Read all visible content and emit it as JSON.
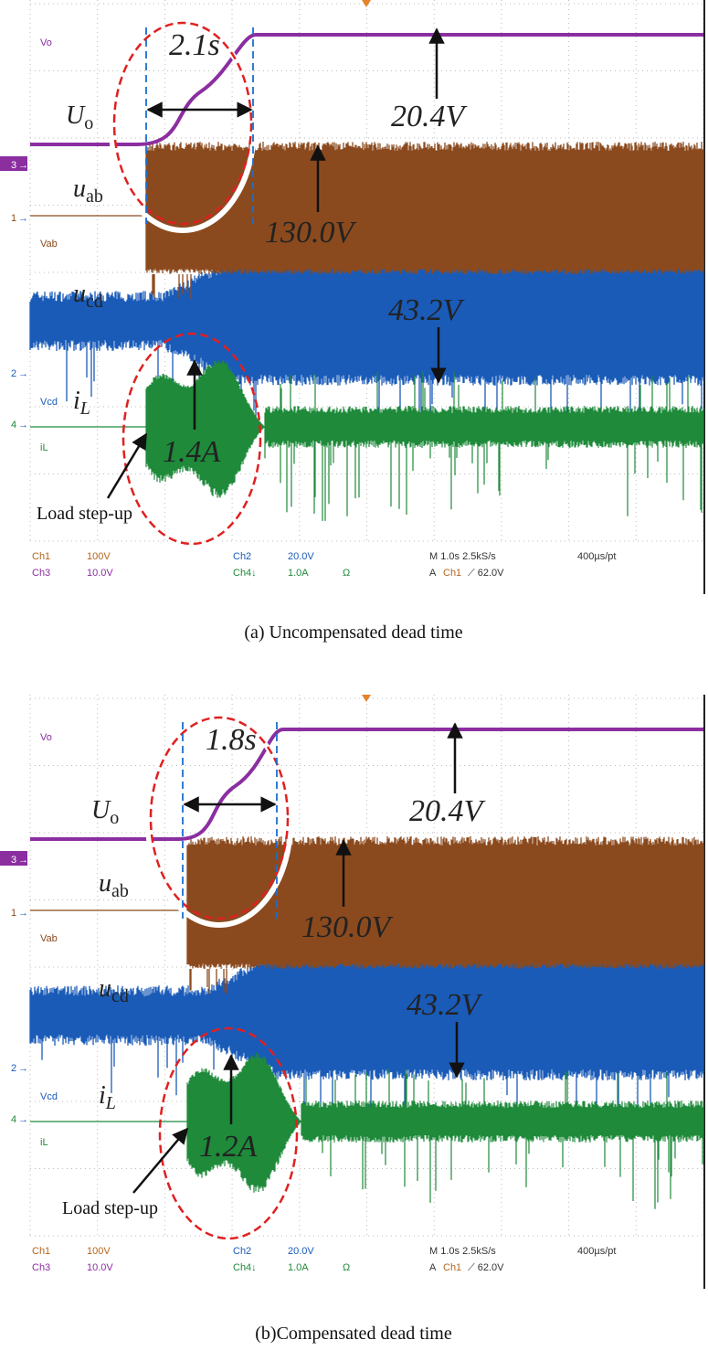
{
  "panels": [
    {
      "caption": "(a) Uncompensated dead time",
      "interval": "2.1s",
      "signals": {
        "uo": {
          "main": "U",
          "sub": "o"
        },
        "uab": {
          "main": "u",
          "sub": "ab"
        },
        "ucd": {
          "main": "u",
          "sub": "cd"
        },
        "il": {
          "main": "i",
          "sub": "L"
        }
      },
      "values": {
        "vo": "20.4V",
        "vab": "130.0V",
        "vcd": "43.2V",
        "il": "1.4A"
      },
      "event": "Load step-up",
      "channel_labels": [
        "Vo",
        "Vab",
        "Vcd",
        "iL"
      ],
      "channel_markers": [
        "3",
        "1",
        "2",
        "4"
      ],
      "readouts": [
        "Ch1",
        "100V",
        "Ch2",
        "20.0V",
        "M 1.0s 2.5kS/s",
        "400µs/pt",
        "Ch3",
        "10.0V",
        "Ch4↓",
        "1.0A",
        "Ω",
        "A",
        "Ch1",
        "⟋ 62.0V"
      ]
    },
    {
      "caption": "(b)Compensated dead time",
      "interval": "1.8s",
      "signals": {
        "uo": {
          "main": "U",
          "sub": "o"
        },
        "uab": {
          "main": "u",
          "sub": "ab"
        },
        "ucd": {
          "main": "u",
          "sub": "cd"
        },
        "il": {
          "main": "i",
          "sub": "L"
        }
      },
      "values": {
        "vo": "20.4V",
        "vab": "130.0V",
        "vcd": "43.2V",
        "il": "1.2A"
      },
      "event": "Load step-up",
      "channel_labels": [
        "Vo",
        "Vab",
        "Vcd",
        "iL"
      ],
      "channel_markers": [
        "3",
        "1",
        "2",
        "4"
      ],
      "readouts": [
        "Ch1",
        "100V",
        "Ch2",
        "20.0V",
        "M 1.0s 2.5kS/s",
        "400µs/pt",
        "Ch3",
        "10.0V",
        "Ch4↓",
        "1.0A",
        "Ω",
        "A",
        "Ch1",
        "⟋ 62.0V"
      ]
    }
  ]
}
